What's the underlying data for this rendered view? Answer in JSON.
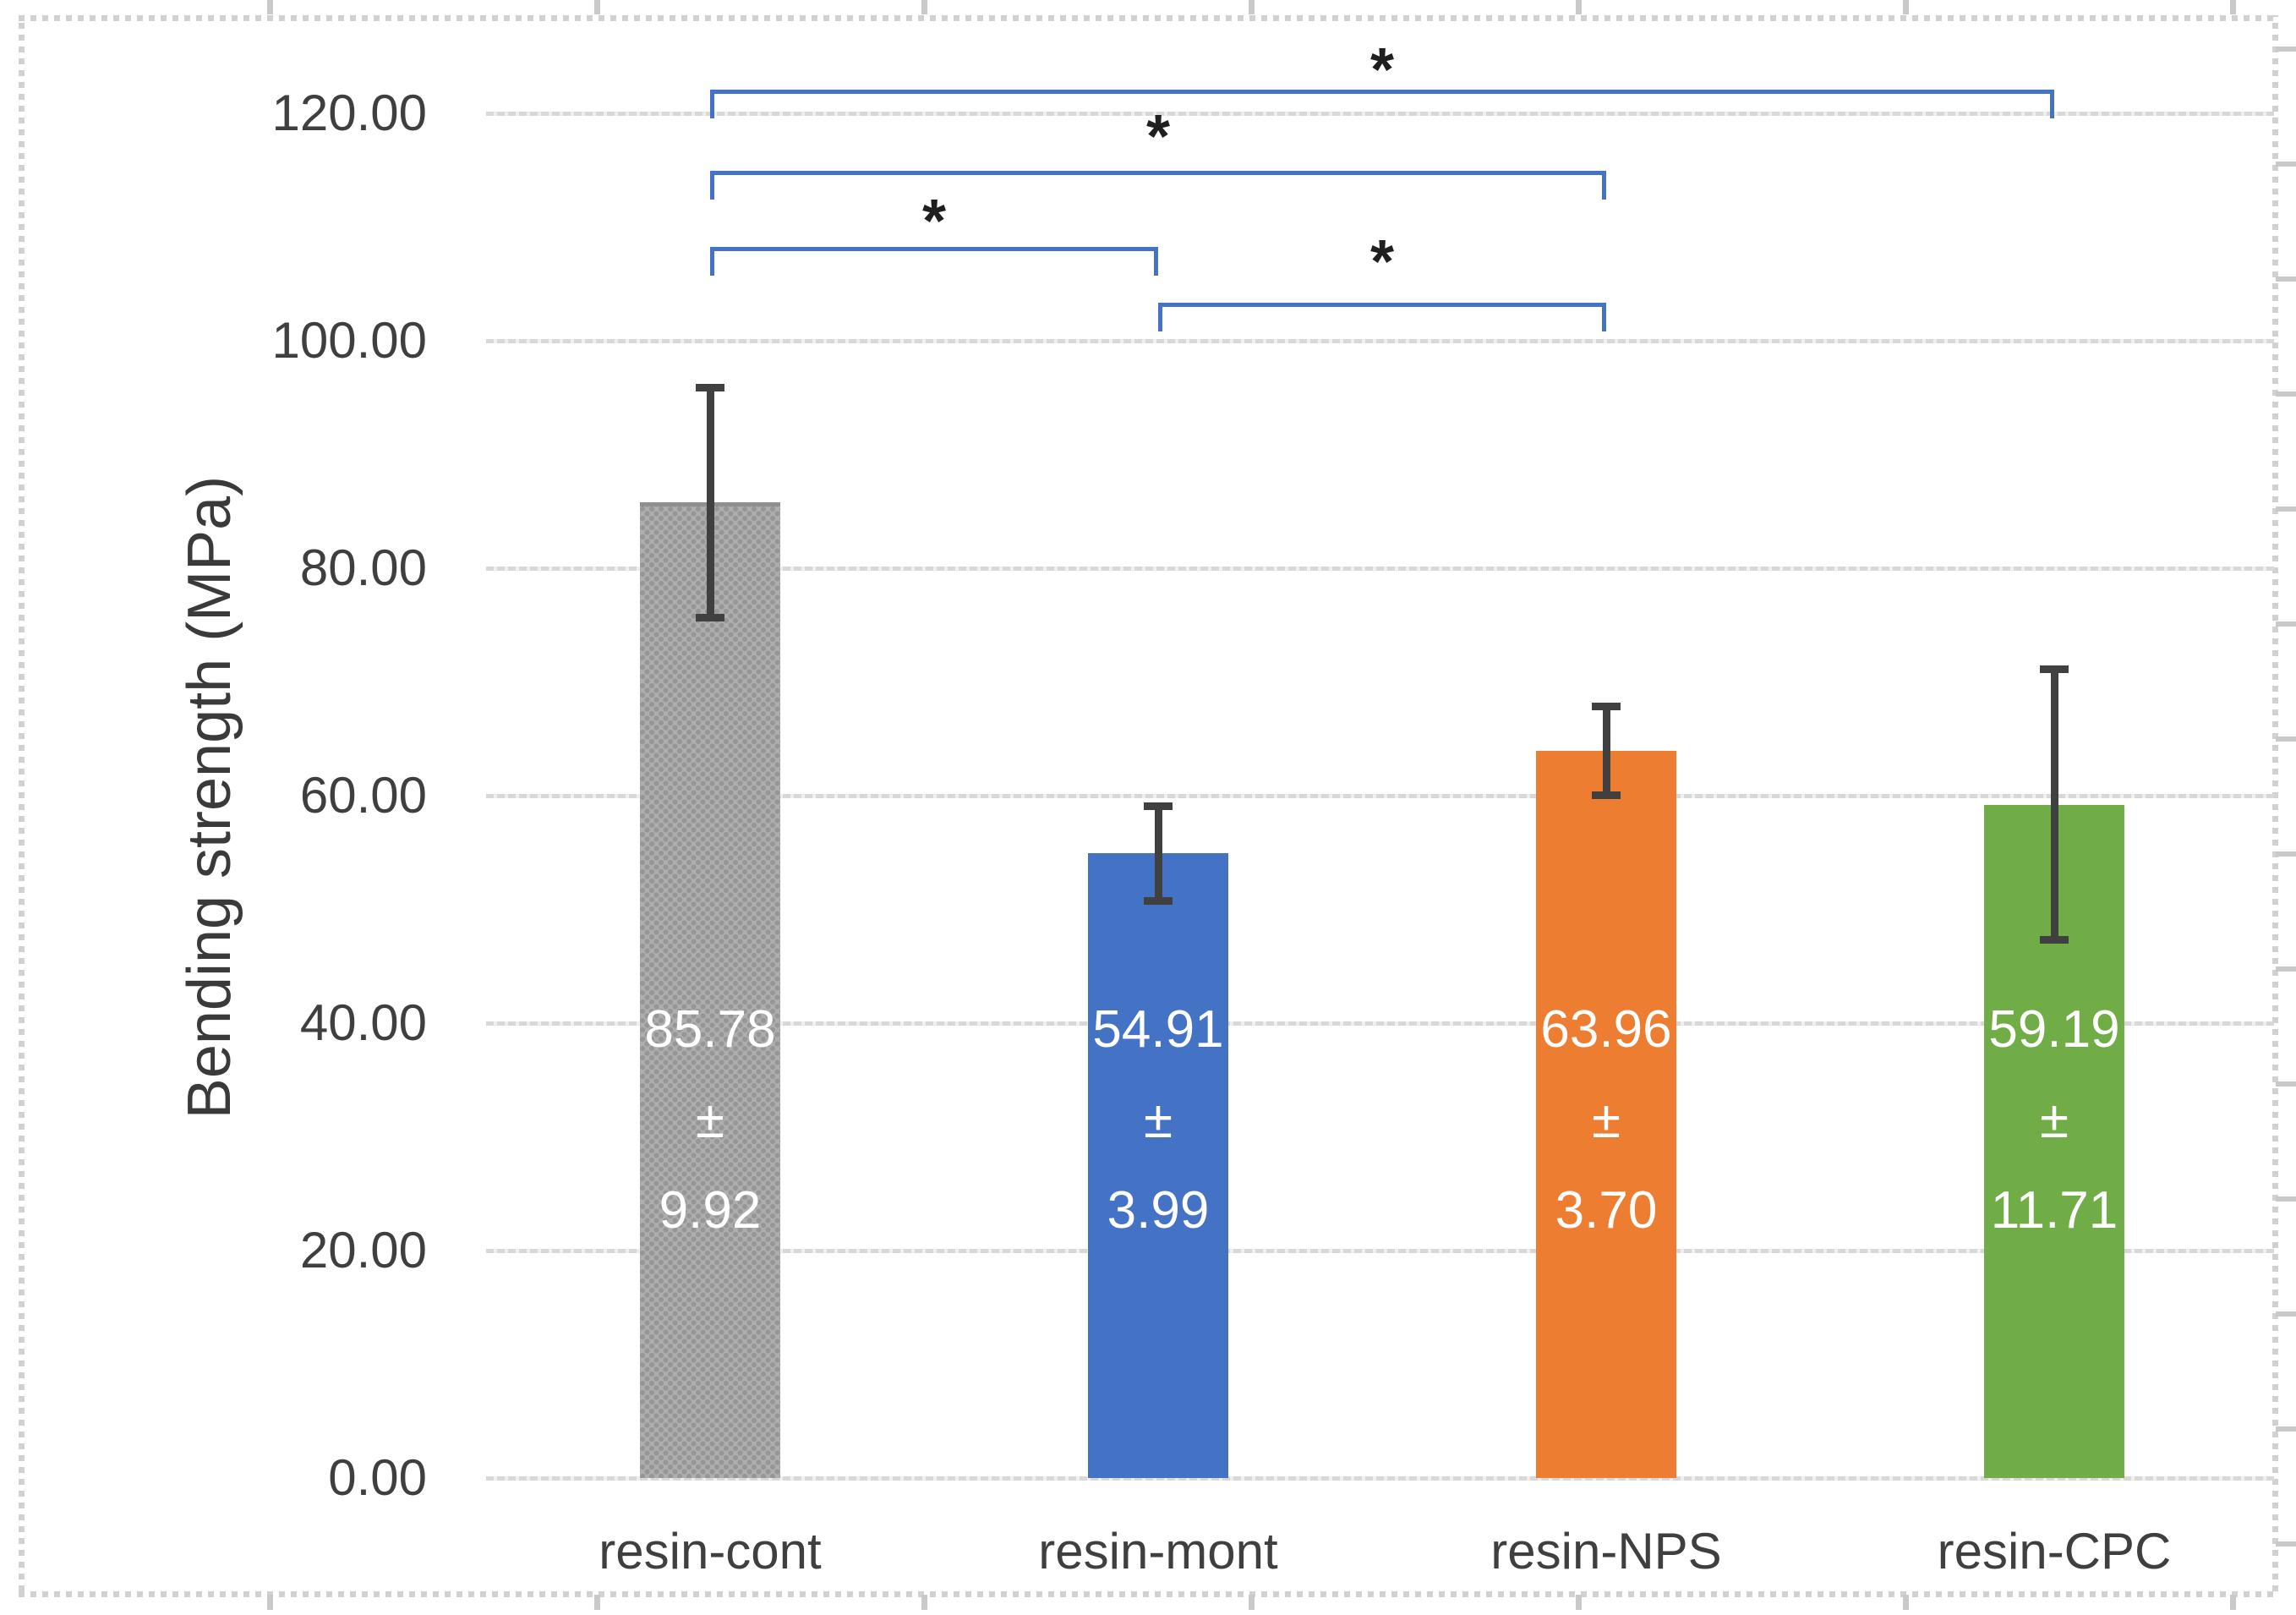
{
  "chart_data": {
    "type": "bar",
    "title": "",
    "ylabel": "Bending strength (MPa)",
    "xlabel": "",
    "categories": [
      "resin-cont",
      "resin-mont",
      "resin-NPS",
      "resin-CPC"
    ],
    "values": [
      85.78,
      54.91,
      63.96,
      59.19
    ],
    "errors": [
      9.92,
      3.99,
      3.7,
      11.71
    ],
    "bar_value_labels": [
      [
        "85.78",
        "±",
        "9.92"
      ],
      [
        "54.91",
        "±",
        "3.99"
      ],
      [
        "63.96",
        "±",
        "3.70"
      ],
      [
        "59.19",
        "±",
        "11.71"
      ]
    ],
    "y_ticks": [
      "120.00",
      "100.00",
      "80.00",
      "60.00",
      "40.00",
      "20.00",
      "0.00"
    ],
    "y_tick_values": [
      120,
      100,
      80,
      60,
      40,
      20,
      0
    ],
    "ylim": [
      0,
      120
    ],
    "grid": true,
    "legend": false,
    "bar_styles": [
      {
        "color": "#a6a6a6",
        "pattern": "dotted"
      },
      {
        "color": "#4472c4",
        "pattern": "solid"
      },
      {
        "color": "#ed7d31",
        "pattern": "solid"
      },
      {
        "color": "#70ad47",
        "pattern": "solid"
      }
    ],
    "significance_brackets": [
      {
        "from": "resin-cont",
        "to": "resin-CPC",
        "symbol": "*"
      },
      {
        "from": "resin-cont",
        "to": "resin-NPS",
        "symbol": "*"
      },
      {
        "from": "resin-cont",
        "to": "resin-mont",
        "symbol": "*"
      },
      {
        "from": "resin-mont",
        "to": "resin-NPS",
        "symbol": "*"
      }
    ],
    "colors": {
      "bracket": "#4472c4",
      "error_bar": "#404040",
      "gridline": "#d8d8d8",
      "axis_text": "#3f3f3f",
      "value_label_text": "#ffffff"
    }
  }
}
